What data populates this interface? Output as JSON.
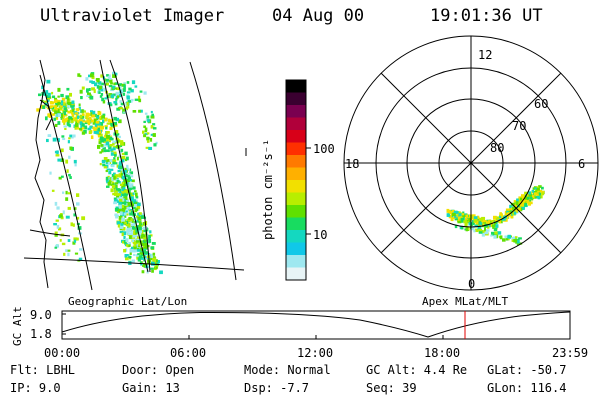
{
  "header": {
    "instrument": "Ultraviolet Imager",
    "date": "04 Aug 00",
    "time": "19:01:36 UT"
  },
  "colorbar": {
    "unit_label": "photon cm⁻²s⁻¹",
    "ticks": [
      "100",
      "10"
    ],
    "colors": [
      "#000000",
      "#3a0030",
      "#7a0050",
      "#b0003a",
      "#d80018",
      "#ff3000",
      "#ff7a00",
      "#ffb000",
      "#f2e000",
      "#b8ee00",
      "#60e000",
      "#18dc60",
      "#14d8c0",
      "#10c8e8",
      "#9ee8f0",
      "#e8f4f6"
    ]
  },
  "polar": {
    "mlt_labels": {
      "top": "12",
      "left": "18",
      "right": "6",
      "bottom": "0"
    },
    "mlat_labels": [
      "60",
      "70",
      "80"
    ]
  },
  "labels": {
    "geographic": "Geographic Lat/Lon",
    "apex": "Apex MLat/MLT"
  },
  "orbit": {
    "axis_title": "GC Alt",
    "y_ticks": [
      "9.0",
      "1.8"
    ],
    "x_ticks": [
      "00:00",
      "06:00",
      "12:00",
      "18:00",
      "23:59"
    ],
    "current_time_marker": "19:01"
  },
  "info": {
    "row1": [
      {
        "label": "Flt:",
        "value": "LBHL"
      },
      {
        "label": "Door:",
        "value": "Open"
      },
      {
        "label": "Mode:",
        "value": "Normal"
      },
      {
        "label": "GC Alt:",
        "value": "4.4 Re"
      },
      {
        "label": "GLat:",
        "value": "-50.7"
      }
    ],
    "row2": [
      {
        "label": "IP:",
        "value": "9.0"
      },
      {
        "label": "Gain:",
        "value": "13"
      },
      {
        "label": "Dsp:",
        "value": "-7.7"
      },
      {
        "label": "Seq:",
        "value": "39"
      },
      {
        "label": "GLon:",
        "value": "116.4"
      }
    ]
  }
}
